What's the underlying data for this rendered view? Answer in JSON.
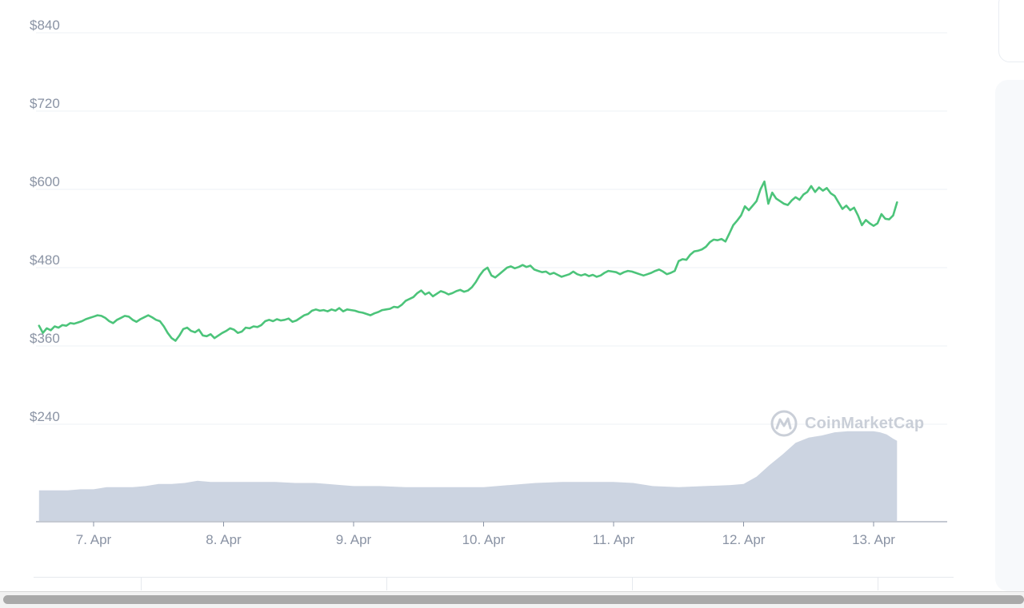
{
  "watermark": {
    "text": "CoinMarketCap"
  },
  "colors": {
    "price_line": "#4cc47a",
    "volume_fill": "#ccd4e1",
    "grid": "#eef1f5"
  },
  "chart_data": {
    "type": "line",
    "title": "",
    "xlabel": "",
    "ylabel": "",
    "grid": true,
    "x_unit": "days from 7. Apr 00:00",
    "ylim": [
      240,
      840
    ],
    "y_ticks": [
      {
        "value": 840,
        "label": "$840"
      },
      {
        "value": 720,
        "label": "$720"
      },
      {
        "value": 600,
        "label": "$600"
      },
      {
        "value": 480,
        "label": "$480"
      },
      {
        "value": 360,
        "label": "$360"
      },
      {
        "value": 240,
        "label": "$240"
      }
    ],
    "x_ticks": [
      {
        "value": 0,
        "label": "7. Apr"
      },
      {
        "value": 1,
        "label": "8. Apr"
      },
      {
        "value": 2,
        "label": "9. Apr"
      },
      {
        "value": 3,
        "label": "10. Apr"
      },
      {
        "value": 4,
        "label": "11. Apr"
      },
      {
        "value": 5,
        "label": "12. Apr"
      },
      {
        "value": 6,
        "label": "13. Apr"
      }
    ],
    "xlim": [
      -0.42,
      6.57
    ],
    "series": [
      {
        "type": "line",
        "points": [
          [
            -0.42,
            391
          ],
          [
            -0.39,
            380
          ],
          [
            -0.36,
            387
          ],
          [
            -0.33,
            384
          ],
          [
            -0.3,
            390
          ],
          [
            -0.27,
            388
          ],
          [
            -0.24,
            392
          ],
          [
            -0.21,
            391
          ],
          [
            -0.18,
            395
          ],
          [
            -0.15,
            394
          ],
          [
            -0.12,
            396
          ],
          [
            -0.09,
            398
          ],
          [
            -0.06,
            401
          ],
          [
            -0.03,
            403
          ],
          [
            0.0,
            405
          ],
          [
            0.03,
            407
          ],
          [
            0.06,
            406
          ],
          [
            0.09,
            403
          ],
          [
            0.12,
            398
          ],
          [
            0.15,
            395
          ],
          [
            0.18,
            400
          ],
          [
            0.21,
            403
          ],
          [
            0.24,
            406
          ],
          [
            0.27,
            405
          ],
          [
            0.3,
            400
          ],
          [
            0.33,
            397
          ],
          [
            0.36,
            401
          ],
          [
            0.39,
            404
          ],
          [
            0.42,
            407
          ],
          [
            0.45,
            404
          ],
          [
            0.48,
            400
          ],
          [
            0.51,
            398
          ],
          [
            0.54,
            390
          ],
          [
            0.57,
            380
          ],
          [
            0.6,
            372
          ],
          [
            0.63,
            368
          ],
          [
            0.66,
            376
          ],
          [
            0.69,
            386
          ],
          [
            0.72,
            388
          ],
          [
            0.75,
            383
          ],
          [
            0.78,
            381
          ],
          [
            0.81,
            385
          ],
          [
            0.84,
            376
          ],
          [
            0.87,
            375
          ],
          [
            0.9,
            378
          ],
          [
            0.93,
            372
          ],
          [
            0.96,
            376
          ],
          [
            0.99,
            380
          ],
          [
            1.02,
            383
          ],
          [
            1.05,
            387
          ],
          [
            1.08,
            385
          ],
          [
            1.11,
            380
          ],
          [
            1.14,
            382
          ],
          [
            1.17,
            388
          ],
          [
            1.2,
            387
          ],
          [
            1.23,
            390
          ],
          [
            1.26,
            389
          ],
          [
            1.29,
            392
          ],
          [
            1.32,
            398
          ],
          [
            1.35,
            400
          ],
          [
            1.38,
            398
          ],
          [
            1.41,
            401
          ],
          [
            1.44,
            399
          ],
          [
            1.47,
            400
          ],
          [
            1.5,
            402
          ],
          [
            1.53,
            397
          ],
          [
            1.56,
            399
          ],
          [
            1.59,
            403
          ],
          [
            1.62,
            407
          ],
          [
            1.65,
            409
          ],
          [
            1.68,
            414
          ],
          [
            1.71,
            416
          ],
          [
            1.74,
            414
          ],
          [
            1.77,
            415
          ],
          [
            1.8,
            413
          ],
          [
            1.83,
            416
          ],
          [
            1.86,
            414
          ],
          [
            1.89,
            418
          ],
          [
            1.92,
            413
          ],
          [
            1.95,
            416
          ],
          [
            1.98,
            415
          ],
          [
            2.01,
            414
          ],
          [
            2.04,
            412
          ],
          [
            2.07,
            411
          ],
          [
            2.1,
            409
          ],
          [
            2.13,
            407
          ],
          [
            2.16,
            410
          ],
          [
            2.19,
            412
          ],
          [
            2.22,
            415
          ],
          [
            2.25,
            416
          ],
          [
            2.28,
            417
          ],
          [
            2.31,
            420
          ],
          [
            2.34,
            419
          ],
          [
            2.37,
            423
          ],
          [
            2.4,
            429
          ],
          [
            2.43,
            432
          ],
          [
            2.46,
            435
          ],
          [
            2.49,
            441
          ],
          [
            2.52,
            445
          ],
          [
            2.55,
            439
          ],
          [
            2.58,
            442
          ],
          [
            2.61,
            436
          ],
          [
            2.64,
            440
          ],
          [
            2.67,
            444
          ],
          [
            2.7,
            442
          ],
          [
            2.73,
            439
          ],
          [
            2.76,
            441
          ],
          [
            2.79,
            444
          ],
          [
            2.82,
            446
          ],
          [
            2.85,
            443
          ],
          [
            2.88,
            445
          ],
          [
            2.91,
            450
          ],
          [
            2.94,
            458
          ],
          [
            2.97,
            468
          ],
          [
            3.0,
            476
          ],
          [
            3.03,
            480
          ],
          [
            3.06,
            468
          ],
          [
            3.09,
            465
          ],
          [
            3.12,
            470
          ],
          [
            3.15,
            475
          ],
          [
            3.18,
            480
          ],
          [
            3.21,
            482
          ],
          [
            3.24,
            479
          ],
          [
            3.27,
            481
          ],
          [
            3.3,
            484
          ],
          [
            3.33,
            481
          ],
          [
            3.36,
            483
          ],
          [
            3.39,
            477
          ],
          [
            3.42,
            475
          ],
          [
            3.45,
            473
          ],
          [
            3.48,
            474
          ],
          [
            3.51,
            470
          ],
          [
            3.54,
            472
          ],
          [
            3.57,
            469
          ],
          [
            3.6,
            466
          ],
          [
            3.63,
            468
          ],
          [
            3.66,
            470
          ],
          [
            3.69,
            474
          ],
          [
            3.72,
            470
          ],
          [
            3.75,
            468
          ],
          [
            3.78,
            470
          ],
          [
            3.81,
            467
          ],
          [
            3.84,
            469
          ],
          [
            3.87,
            466
          ],
          [
            3.9,
            468
          ],
          [
            3.93,
            472
          ],
          [
            3.96,
            475
          ],
          [
            3.99,
            474
          ],
          [
            4.02,
            473
          ],
          [
            4.05,
            470
          ],
          [
            4.08,
            473
          ],
          [
            4.11,
            475
          ],
          [
            4.14,
            474
          ],
          [
            4.17,
            472
          ],
          [
            4.2,
            470
          ],
          [
            4.23,
            468
          ],
          [
            4.26,
            470
          ],
          [
            4.29,
            472
          ],
          [
            4.32,
            475
          ],
          [
            4.35,
            477
          ],
          [
            4.38,
            474
          ],
          [
            4.41,
            470
          ],
          [
            4.44,
            472
          ],
          [
            4.47,
            475
          ],
          [
            4.5,
            490
          ],
          [
            4.53,
            493
          ],
          [
            4.56,
            492
          ],
          [
            4.59,
            500
          ],
          [
            4.62,
            505
          ],
          [
            4.65,
            506
          ],
          [
            4.68,
            508
          ],
          [
            4.71,
            512
          ],
          [
            4.74,
            519
          ],
          [
            4.77,
            523
          ],
          [
            4.8,
            522
          ],
          [
            4.83,
            524
          ],
          [
            4.86,
            520
          ],
          [
            4.89,
            532
          ],
          [
            4.92,
            545
          ],
          [
            4.95,
            552
          ],
          [
            4.98,
            560
          ],
          [
            5.01,
            574
          ],
          [
            5.04,
            568
          ],
          [
            5.07,
            575
          ],
          [
            5.1,
            582
          ],
          [
            5.13,
            600
          ],
          [
            5.16,
            612
          ],
          [
            5.19,
            578
          ],
          [
            5.22,
            595
          ],
          [
            5.25,
            586
          ],
          [
            5.28,
            582
          ],
          [
            5.31,
            578
          ],
          [
            5.34,
            576
          ],
          [
            5.37,
            583
          ],
          [
            5.4,
            588
          ],
          [
            5.43,
            584
          ],
          [
            5.46,
            592
          ],
          [
            5.49,
            596
          ],
          [
            5.52,
            605
          ],
          [
            5.55,
            596
          ],
          [
            5.58,
            603
          ],
          [
            5.61,
            598
          ],
          [
            5.64,
            602
          ],
          [
            5.67,
            594
          ],
          [
            5.7,
            590
          ],
          [
            5.73,
            580
          ],
          [
            5.76,
            570
          ],
          [
            5.79,
            575
          ],
          [
            5.82,
            568
          ],
          [
            5.85,
            572
          ],
          [
            5.88,
            560
          ],
          [
            5.91,
            545
          ],
          [
            5.94,
            553
          ],
          [
            5.97,
            548
          ],
          [
            6.0,
            544
          ],
          [
            6.03,
            548
          ],
          [
            6.06,
            562
          ],
          [
            6.09,
            555
          ],
          [
            6.12,
            554
          ],
          [
            6.15,
            560
          ],
          [
            6.18,
            580
          ]
        ]
      },
      {
        "name": "",
        "type": "area",
        "points": [
          [
            -0.42,
            0.29
          ],
          [
            -0.2,
            0.29
          ],
          [
            -0.1,
            0.3
          ],
          [
            0.0,
            0.3
          ],
          [
            0.1,
            0.32
          ],
          [
            0.3,
            0.32
          ],
          [
            0.4,
            0.33
          ],
          [
            0.5,
            0.35
          ],
          [
            0.6,
            0.35
          ],
          [
            0.7,
            0.36
          ],
          [
            0.8,
            0.38
          ],
          [
            0.9,
            0.37
          ],
          [
            1.0,
            0.37
          ],
          [
            1.2,
            0.37
          ],
          [
            1.4,
            0.37
          ],
          [
            1.55,
            0.36
          ],
          [
            1.7,
            0.36
          ],
          [
            1.8,
            0.35
          ],
          [
            1.9,
            0.34
          ],
          [
            2.0,
            0.33
          ],
          [
            2.2,
            0.33
          ],
          [
            2.4,
            0.32
          ],
          [
            2.6,
            0.32
          ],
          [
            2.8,
            0.32
          ],
          [
            3.0,
            0.32
          ],
          [
            3.2,
            0.34
          ],
          [
            3.4,
            0.36
          ],
          [
            3.6,
            0.37
          ],
          [
            3.8,
            0.37
          ],
          [
            4.0,
            0.37
          ],
          [
            4.15,
            0.36
          ],
          [
            4.3,
            0.33
          ],
          [
            4.5,
            0.32
          ],
          [
            4.7,
            0.33
          ],
          [
            4.9,
            0.34
          ],
          [
            5.0,
            0.35
          ],
          [
            5.1,
            0.42
          ],
          [
            5.2,
            0.53
          ],
          [
            5.3,
            0.63
          ],
          [
            5.4,
            0.74
          ],
          [
            5.5,
            0.79
          ],
          [
            5.6,
            0.81
          ],
          [
            5.7,
            0.84
          ],
          [
            5.8,
            0.85
          ],
          [
            5.9,
            0.85
          ],
          [
            6.0,
            0.85
          ],
          [
            6.05,
            0.84
          ],
          [
            6.1,
            0.82
          ],
          [
            6.15,
            0.78
          ],
          [
            6.18,
            0.76
          ]
        ]
      }
    ]
  }
}
